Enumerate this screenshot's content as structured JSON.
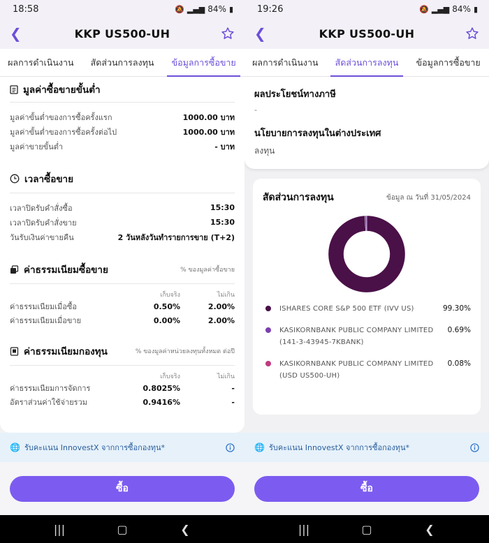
{
  "left": {
    "status": {
      "time": "18:58",
      "battery": "84%"
    },
    "app_title": "KKP US500-UH",
    "tabs": [
      "ผลการดำเนินงาน",
      "สัดส่วนการลงทุน",
      "ข้อมูลการซื้อขาย"
    ],
    "active_tab": 2,
    "min_section": {
      "title": "มูลค่าซื้อขายขั้นต่ำ",
      "rows": [
        {
          "label": "มูลค่าขั้นต่ำของการซื้อครั้งแรก",
          "value": "1000.00 บาท"
        },
        {
          "label": "มูลค่าขั้นต่ำของการซื้อครั้งต่อไป",
          "value": "1000.00 บาท"
        },
        {
          "label": "มูลค่าขายขั้นต่ำ",
          "value": "- บาท"
        }
      ]
    },
    "time_section": {
      "title": "เวลาซื้อขาย",
      "rows": [
        {
          "label": "เวลาปิดรับคำสั่งซื้อ",
          "value": "15:30"
        },
        {
          "label": "เวลาปิดรับคำสั่งขาย",
          "value": "15:30"
        },
        {
          "label": "วันรับเงินค่าขายคืน",
          "value": "2 วันหลังวันทำรายการขาย (T+2)"
        }
      ]
    },
    "trade_fee_section": {
      "title": "ค่าธรรมเนียมซื้อขาย",
      "note": "% ของมูลค่าซื้อขาย",
      "col1": "เก็บจริง",
      "col2": "ไม่เกิน",
      "rows": [
        {
          "label": "ค่าธรรมเนียมเมื่อซื้อ",
          "actual": "0.50%",
          "max": "2.00%"
        },
        {
          "label": "ค่าธรรมเนียมเมื่อขาย",
          "actual": "0.00%",
          "max": "2.00%"
        }
      ]
    },
    "fund_fee_section": {
      "title": "ค่าธรรมเนียมกองทุน",
      "note": "% ของมูลค่าหน่วยลงทุนทั้งหมด ต่อปี",
      "col1": "เก็บจริง",
      "col2": "ไม่เกิน",
      "rows": [
        {
          "label": "ค่าธรรมเนียมการจัดการ",
          "actual": "0.8025%",
          "max": "-"
        },
        {
          "label": "อัตราส่วนค่าใช้จ่ายรวม",
          "actual": "0.9416%",
          "max": "-"
        }
      ]
    },
    "info_strip": "รับคะแนน InnovestX จากการซื้อกองทุน*",
    "buy_label": "ซื้อ"
  },
  "right": {
    "status": {
      "time": "19:26",
      "battery": "84%"
    },
    "app_title": "KKP US500-UH",
    "tabs": [
      "ผลการดำเนินงาน",
      "สัดส่วนการลงทุน",
      "ข้อมูลการซื้อขาย"
    ],
    "active_tab": 1,
    "tax_label": "ผลประโยชน์ทางภาษี",
    "tax_value": "-",
    "policy_label": "นโยบายการลงทุนในต่างประเทศ",
    "policy_value": "ลงทุน",
    "alloc_title": "สัดส่วนการลงทุน",
    "alloc_date": "ข้อมูล ณ วันที่ 31/05/2024",
    "info_strip": "รับคะแนน InnovestX จากการซื้อกองทุน*",
    "buy_label": "ซื้อ"
  },
  "chart_data": {
    "type": "pie",
    "donut": true,
    "labels": [
      "ISHARES CORE S&P 500 ETF (IVV US)",
      "KASIKORNBANK PUBLIC COMPANY LIMITED (141-3-43945-7KBANK)",
      "KASIKORNBANK PUBLIC COMPANY LIMITED (USD US500-UH)"
    ],
    "label_lines": [
      [
        "ISHARES CORE S&P 500 ETF (IVV US)"
      ],
      [
        "KASIKORNBANK PUBLIC COMPANY LIMITED",
        "(141-3-43945-7KBANK)"
      ],
      [
        "KASIKORNBANK PUBLIC COMPANY LIMITED",
        "(USD US500-UH)"
      ]
    ],
    "values": [
      99.3,
      0.69,
      0.08
    ],
    "value_labels": [
      "99.30%",
      "0.69%",
      "0.08%"
    ],
    "colors": [
      "#4a1048",
      "#7b3fb0",
      "#c0397e"
    ]
  }
}
